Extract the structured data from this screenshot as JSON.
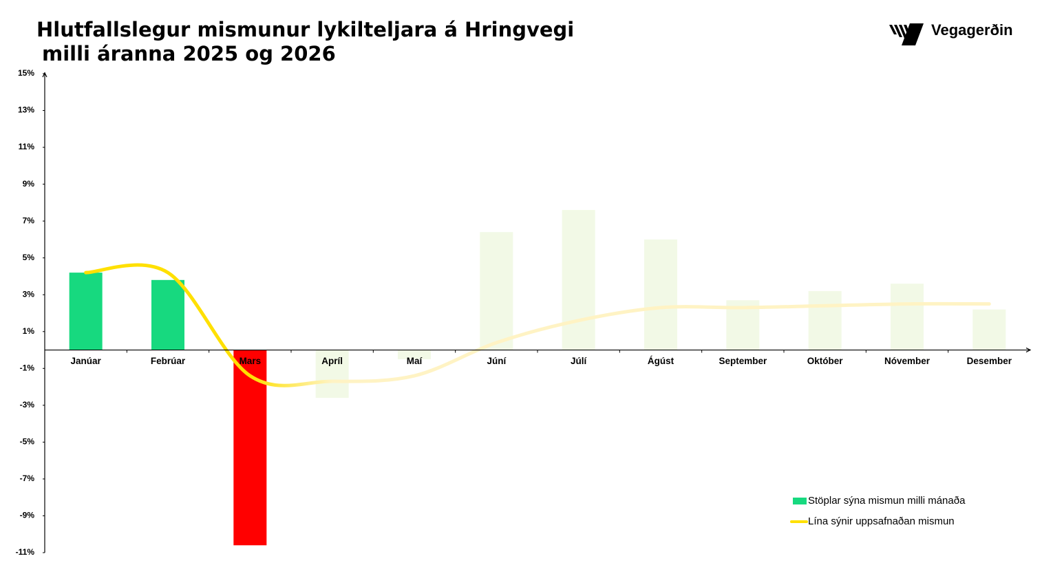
{
  "logo": "Vegagerðin",
  "chart_data": {
    "type": "bar",
    "title_lines": [
      "Hlutfallslegur mismunur lykilteljara á Hringvegi",
      "milli áranna 2025 og 2026"
    ],
    "categories": [
      "Janúar",
      "Febrúar",
      "Mars",
      "Apríl",
      "Maí",
      "Júní",
      "Júlí",
      "Ágúst",
      "September",
      "Október",
      "Nóvember",
      "Desember"
    ],
    "series": [
      {
        "name": "Stöplar sýna mismun milli mánaða",
        "type": "bar",
        "color": "#17d97f",
        "colors": [
          "#17d97f",
          "#17d97f",
          "#ff0000",
          "#f2f9e6",
          "#f2f9e6",
          "#f2f9e6",
          "#f2f9e6",
          "#f2f9e6",
          "#f2f9e6",
          "#f2f9e6",
          "#f2f9e6",
          "#f2f9e6"
        ],
        "values": [
          4.2,
          3.8,
          -10.6,
          -2.6,
          -0.5,
          6.4,
          7.6,
          6.0,
          2.7,
          3.2,
          3.6,
          2.2
        ]
      },
      {
        "name": "Lína sýnir uppsafnaðan mismun",
        "type": "line",
        "color": "#ffe000",
        "colors": [
          "#ffe000",
          "#ffe000",
          "#ffe000",
          "#fff3c4",
          "#fff3c4",
          "#fff3c4",
          "#fff3c4",
          "#fff3c4",
          "#fff3c4",
          "#fff3c4",
          "#fff3c4",
          "#fff3c4"
        ],
        "values": [
          4.2,
          4.2,
          -1.4,
          -1.7,
          -1.4,
          0.4,
          1.6,
          2.3,
          2.3,
          2.4,
          2.5,
          2.5
        ]
      }
    ],
    "ylim": [
      -11,
      15
    ],
    "yticks": [
      {
        "value": 15,
        "label": "15%"
      },
      {
        "value": 13,
        "label": "13%"
      },
      {
        "value": 11,
        "label": "11%"
      },
      {
        "value": 9,
        "label": "9%"
      },
      {
        "value": 7,
        "label": "7%"
      },
      {
        "value": 5,
        "label": "5%"
      },
      {
        "value": 3,
        "label": "3%"
      },
      {
        "value": 1,
        "label": "1%"
      },
      {
        "value": -1,
        "label": "-1%"
      },
      {
        "value": -3,
        "label": "-3%"
      },
      {
        "value": -5,
        "label": "-5%"
      },
      {
        "value": -7,
        "label": "-7%"
      },
      {
        "value": -9,
        "label": "-9%"
      },
      {
        "value": -11,
        "label": "-11%"
      }
    ],
    "grid": false,
    "legend": "lower right"
  }
}
